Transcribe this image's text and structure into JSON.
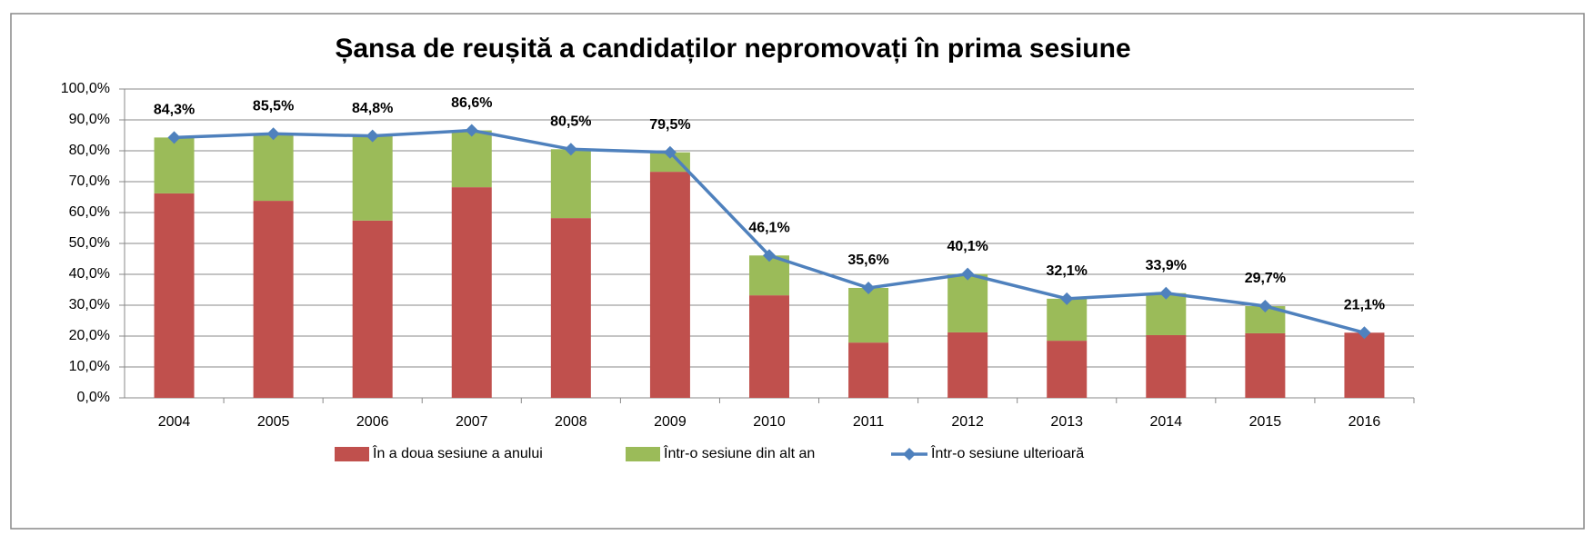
{
  "chart_data": {
    "type": "bar",
    "title": "Șansa de reușită a candidaților nepromovați în prima sesiune",
    "categories": [
      "2004",
      "2005",
      "2006",
      "2007",
      "2008",
      "2009",
      "2010",
      "2011",
      "2012",
      "2013",
      "2014",
      "2015",
      "2016"
    ],
    "series": [
      {
        "name": "În a doua sesiune a anului",
        "color": "#c0504d",
        "values": [
          66.2,
          63.8,
          57.4,
          68.2,
          58.2,
          73.2,
          33.2,
          17.9,
          21.2,
          18.5,
          20.3,
          20.9,
          21.1
        ]
      },
      {
        "name": "Într-o sesiune din alt an",
        "color": "#9bbb59",
        "values": [
          18.1,
          21.7,
          27.4,
          18.4,
          22.3,
          6.3,
          12.9,
          17.7,
          18.9,
          13.6,
          13.6,
          8.8,
          0
        ]
      },
      {
        "name": "Într-o sesiune ulterioară",
        "type": "line",
        "color": "#4f81bd",
        "values": [
          84.3,
          85.5,
          84.8,
          86.6,
          80.5,
          79.5,
          46.1,
          35.6,
          40.1,
          32.1,
          33.9,
          29.7,
          21.1
        ],
        "value_labels": [
          "84,3%",
          "85,5%",
          "84,8%",
          "86,6%",
          "80,5%",
          "79,5%",
          "46,1%",
          "35,6%",
          "40,1%",
          "32,1%",
          "33,9%",
          "29,7%",
          "21,1%"
        ]
      }
    ],
    "ylim": [
      0,
      100
    ],
    "yticks": [
      {
        "value": 0,
        "label": "0,0%"
      },
      {
        "value": 10,
        "label": "10,0%"
      },
      {
        "value": 20,
        "label": "20,0%"
      },
      {
        "value": 30,
        "label": "30,0%"
      },
      {
        "value": 40,
        "label": "40,0%"
      },
      {
        "value": 50,
        "label": "50,0%"
      },
      {
        "value": 60,
        "label": "60,0%"
      },
      {
        "value": 70,
        "label": "70,0%"
      },
      {
        "value": 80,
        "label": "80,0%"
      },
      {
        "value": 90,
        "label": "90,0%"
      },
      {
        "value": 100,
        "label": "100,0%"
      }
    ],
    "grid": true
  }
}
